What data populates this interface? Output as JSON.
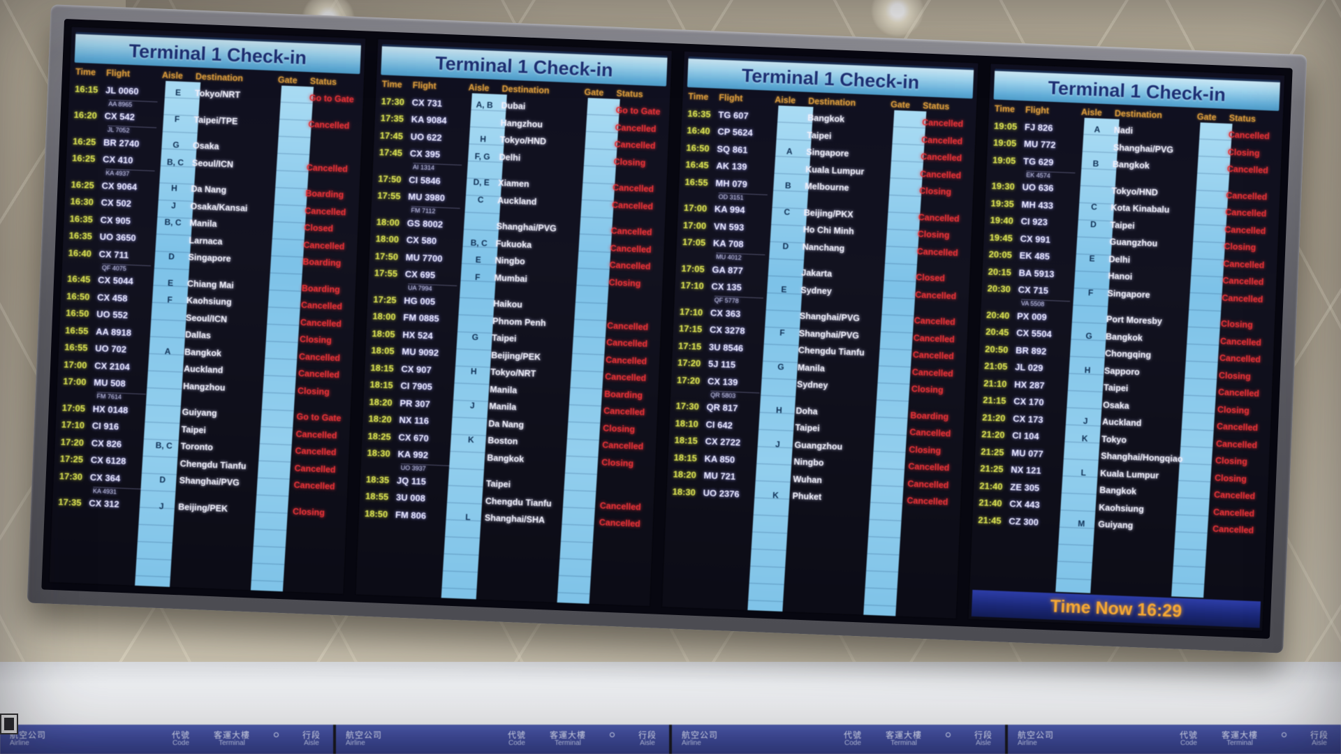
{
  "colors": {
    "header_blue": "#9fd4ee",
    "time_yellow": "#d9e052",
    "flight_white": "#e9e9ff",
    "status_red": "#e43237",
    "column_header_orange": "#d89a3c",
    "aisle_band_blue": "#7dc2e8",
    "sign_blue": "#3e4a9c",
    "time_now_orange": "#f5a733"
  },
  "board": {
    "columns": [
      "Time",
      "Flight",
      "Aisle",
      "Destination",
      "Gate",
      "Status"
    ],
    "panels": [
      {
        "title": "Terminal 1 Check-in",
        "rows": [
          {
            "t": "16:15",
            "f": "JL 0060",
            "a": "E",
            "d": "Tokyo/NRT",
            "s": "Go to Gate"
          },
          {
            "f": "AA 8965",
            "sub": true
          },
          {
            "t": "16:20",
            "f": "CX 542",
            "a": "F",
            "d": "Taipei/TPE",
            "s": "Cancelled"
          },
          {
            "f": "JL 7052",
            "sub": true
          },
          {
            "t": "16:25",
            "f": "BR 2740",
            "a": "G",
            "d": "Osaka",
            "s": ""
          },
          {
            "t": "16:25",
            "f": "CX 410",
            "a": "B, C",
            "d": "Seoul/ICN",
            "s": "Cancelled"
          },
          {
            "f": "KA 4937",
            "sub": true
          },
          {
            "t": "16:25",
            "f": "CX 9064",
            "a": "H",
            "d": "Da Nang",
            "s": "Boarding"
          },
          {
            "t": "16:30",
            "f": "CX 502",
            "a": "J",
            "d": "Osaka/Kansai",
            "s": "Cancelled"
          },
          {
            "t": "16:35",
            "f": "CX 905",
            "a": "B, C",
            "d": "Manila",
            "s": "Closed"
          },
          {
            "t": "16:35",
            "f": "UO 3650",
            "a": "",
            "d": "Larnaca",
            "s": "Cancelled"
          },
          {
            "t": "16:40",
            "f": "CX 711",
            "a": "D",
            "d": "Singapore",
            "s": "Boarding"
          },
          {
            "f": "QF 4075",
            "sub": true
          },
          {
            "t": "16:45",
            "f": "CX 5044",
            "a": "E",
            "d": "Chiang Mai",
            "s": "Boarding"
          },
          {
            "t": "16:50",
            "f": "CX 458",
            "a": "F",
            "d": "Kaohsiung",
            "s": "Cancelled"
          },
          {
            "t": "16:50",
            "f": "UO 552",
            "a": "",
            "d": "Seoul/ICN",
            "s": "Cancelled"
          },
          {
            "t": "16:55",
            "f": "AA 8918",
            "a": "",
            "d": "Dallas",
            "s": "Closing"
          },
          {
            "t": "16:55",
            "f": "UO 702",
            "a": "A",
            "d": "Bangkok",
            "s": "Cancelled"
          },
          {
            "t": "17:00",
            "f": "CX 2104",
            "a": "",
            "d": "Auckland",
            "s": "Cancelled"
          },
          {
            "t": "17:00",
            "f": "MU 508",
            "a": "",
            "d": "Hangzhou",
            "s": "Closing"
          },
          {
            "f": "FM 7614",
            "sub": true
          },
          {
            "t": "17:05",
            "f": "HX 0148",
            "a": "",
            "d": "Guiyang",
            "s": "Go to Gate"
          },
          {
            "t": "17:10",
            "f": "CI 916",
            "a": "",
            "d": "Taipei",
            "s": "Cancelled"
          },
          {
            "t": "17:20",
            "f": "CX 826",
            "a": "B, C",
            "d": "Toronto",
            "s": "Cancelled"
          },
          {
            "t": "17:25",
            "f": "CX 6128",
            "a": "",
            "d": "Chengdu Tianfu",
            "s": "Cancelled"
          },
          {
            "t": "17:30",
            "f": "CX 364",
            "a": "D",
            "d": "Shanghai/PVG",
            "s": "Cancelled"
          },
          {
            "f": "KA 4931",
            "sub": true
          },
          {
            "t": "17:35",
            "f": "CX 312",
            "a": "J",
            "d": "Beijing/PEK",
            "s": "Closing"
          }
        ]
      },
      {
        "title": "Terminal 1 Check-in",
        "rows": [
          {
            "t": "17:30",
            "f": "CX 731",
            "a": "A, B",
            "d": "Dubai",
            "s": "Go to Gate"
          },
          {
            "t": "17:35",
            "f": "KA 9084",
            "a": "",
            "d": "Hangzhou",
            "s": "Cancelled"
          },
          {
            "t": "17:45",
            "f": "UO 622",
            "a": "H",
            "d": "Tokyo/HND",
            "s": "Cancelled"
          },
          {
            "t": "17:45",
            "f": "CX 395",
            "a": "F, G",
            "d": "Delhi",
            "s": "Closing"
          },
          {
            "f": "AI 1314",
            "sub": true
          },
          {
            "t": "17:50",
            "f": "CI 5846",
            "a": "D, E",
            "d": "Xiamen",
            "s": "Cancelled"
          },
          {
            "t": "17:55",
            "f": "MU 3980",
            "a": "C",
            "d": "Auckland",
            "s": "Cancelled"
          },
          {
            "f": "FM 7112",
            "sub": true
          },
          {
            "t": "18:00",
            "f": "GS 8002",
            "a": "",
            "d": "Shanghai/PVG",
            "s": "Cancelled"
          },
          {
            "t": "18:00",
            "f": "CX 580",
            "a": "B, C",
            "d": "Fukuoka",
            "s": "Cancelled"
          },
          {
            "t": "17:50",
            "f": "MU 7700",
            "a": "E",
            "d": "Ningbo",
            "s": "Cancelled"
          },
          {
            "t": "17:55",
            "f": "CX 695",
            "a": "F",
            "d": "Mumbai",
            "s": "Closing"
          },
          {
            "f": "UA 7994",
            "sub": true
          },
          {
            "t": "17:25",
            "f": "HG 005",
            "a": "",
            "d": "Haikou",
            "s": ""
          },
          {
            "t": "18:00",
            "f": "FM 0885",
            "a": "",
            "d": "Phnom Penh",
            "s": "Cancelled"
          },
          {
            "t": "18:05",
            "f": "HX 524",
            "a": "G",
            "d": "Taipei",
            "s": "Cancelled"
          },
          {
            "t": "18:05",
            "f": "MU 9092",
            "a": "",
            "d": "Beijing/PEK",
            "s": "Cancelled"
          },
          {
            "t": "18:15",
            "f": "CX 907",
            "a": "H",
            "d": "Tokyo/NRT",
            "s": "Cancelled"
          },
          {
            "t": "18:15",
            "f": "CI 7905",
            "a": "",
            "d": "Manila",
            "s": "Boarding"
          },
          {
            "t": "18:20",
            "f": "PR 307",
            "a": "J",
            "d": "Manila",
            "s": "Cancelled"
          },
          {
            "t": "18:20",
            "f": "NX 116",
            "a": "",
            "d": "Da Nang",
            "s": "Closing"
          },
          {
            "t": "18:25",
            "f": "CX 670",
            "a": "K",
            "d": "Boston",
            "s": "Cancelled"
          },
          {
            "t": "18:30",
            "f": "KA 992",
            "a": "",
            "d": "Bangkok",
            "s": "Closing"
          },
          {
            "f": "UO 3937",
            "sub": true
          },
          {
            "t": "18:35",
            "f": "JQ 115",
            "a": "",
            "d": "Taipei",
            "s": ""
          },
          {
            "t": "18:55",
            "f": "3U 008",
            "a": "",
            "d": "Chengdu Tianfu",
            "s": "Cancelled"
          },
          {
            "t": "18:50",
            "f": "FM 806",
            "a": "L",
            "d": "Shanghai/SHA",
            "s": "Cancelled"
          }
        ]
      },
      {
        "title": "Terminal 1 Check-in",
        "rows": [
          {
            "t": "16:35",
            "f": "TG 607",
            "a": "",
            "d": "Bangkok",
            "s": "Cancelled"
          },
          {
            "t": "16:40",
            "f": "CP 5624",
            "a": "",
            "d": "Taipei",
            "s": "Cancelled"
          },
          {
            "t": "16:50",
            "f": "SQ 861",
            "a": "A",
            "d": "Singapore",
            "s": "Cancelled"
          },
          {
            "t": "16:45",
            "f": "AK 139",
            "a": "",
            "d": "Kuala Lumpur",
            "s": "Cancelled"
          },
          {
            "t": "16:55",
            "f": "MH 079",
            "a": "B",
            "d": "Melbourne",
            "s": "Closing"
          },
          {
            "f": "OD 3151",
            "sub": true
          },
          {
            "t": "17:00",
            "f": "KA 994",
            "a": "C",
            "d": "Beijing/PKX",
            "s": "Cancelled"
          },
          {
            "t": "17:00",
            "f": "VN 593",
            "a": "",
            "d": "Ho Chi Minh",
            "s": "Closing"
          },
          {
            "t": "17:05",
            "f": "KA 708",
            "a": "D",
            "d": "Nanchang",
            "s": "Cancelled"
          },
          {
            "f": "MU 4012",
            "sub": true
          },
          {
            "t": "17:05",
            "f": "GA 877",
            "a": "",
            "d": "Jakarta",
            "s": "Closed"
          },
          {
            "t": "17:10",
            "f": "CX 135",
            "a": "E",
            "d": "Sydney",
            "s": "Cancelled"
          },
          {
            "f": "QF 5778",
            "sub": true
          },
          {
            "t": "17:10",
            "f": "CX 363",
            "a": "",
            "d": "Shanghai/PVG",
            "s": "Cancelled"
          },
          {
            "t": "17:15",
            "f": "CX 3278",
            "a": "F",
            "d": "Shanghai/PVG",
            "s": "Cancelled"
          },
          {
            "t": "17:15",
            "f": "3U 8546",
            "a": "",
            "d": "Chengdu Tianfu",
            "s": "Cancelled"
          },
          {
            "t": "17:20",
            "f": "5J 115",
            "a": "G",
            "d": "Manila",
            "s": "Cancelled"
          },
          {
            "t": "17:20",
            "f": "CX 139",
            "a": "",
            "d": "Sydney",
            "s": "Closing"
          },
          {
            "f": "QR 5803",
            "sub": true
          },
          {
            "t": "17:30",
            "f": "QR 817",
            "a": "H",
            "d": "Doha",
            "s": "Boarding"
          },
          {
            "t": "18:10",
            "f": "CI 642",
            "a": "",
            "d": "Taipei",
            "s": "Cancelled"
          },
          {
            "t": "18:15",
            "f": "CX 2722",
            "a": "J",
            "d": "Guangzhou",
            "s": "Closing"
          },
          {
            "t": "18:15",
            "f": "KA 850",
            "a": "",
            "d": "Ningbo",
            "s": "Cancelled"
          },
          {
            "t": "18:20",
            "f": "MU 721",
            "a": "",
            "d": "Wuhan",
            "s": "Cancelled"
          },
          {
            "t": "18:30",
            "f": "UO 2376",
            "a": "K",
            "d": "Phuket",
            "s": "Cancelled"
          }
        ]
      },
      {
        "title": "Terminal 1 Check-in",
        "time_now": "Time Now 16:29",
        "rows": [
          {
            "t": "19:05",
            "f": "FJ 826",
            "a": "A",
            "d": "Nadi",
            "s": "Cancelled"
          },
          {
            "t": "19:05",
            "f": "MU 772",
            "a": "",
            "d": "Shanghai/PVG",
            "s": "Closing"
          },
          {
            "t": "19:05",
            "f": "TG 629",
            "a": "B",
            "d": "Bangkok",
            "s": "Cancelled"
          },
          {
            "f": "EK 4574",
            "sub": true
          },
          {
            "t": "19:30",
            "f": "UO 636",
            "a": "",
            "d": "Tokyo/HND",
            "s": "Cancelled"
          },
          {
            "t": "19:35",
            "f": "MH 433",
            "a": "C",
            "d": "Kota Kinabalu",
            "s": "Cancelled"
          },
          {
            "t": "19:40",
            "f": "CI 923",
            "a": "D",
            "d": "Taipei",
            "s": "Cancelled"
          },
          {
            "t": "19:45",
            "f": "CX 991",
            "a": "",
            "d": "Guangzhou",
            "s": "Closing"
          },
          {
            "t": "20:05",
            "f": "EK 485",
            "a": "E",
            "d": "Delhi",
            "s": "Cancelled"
          },
          {
            "t": "20:15",
            "f": "BA 5913",
            "a": "",
            "d": "Hanoi",
            "s": "Cancelled"
          },
          {
            "t": "20:30",
            "f": "CX 715",
            "a": "F",
            "d": "Singapore",
            "s": "Cancelled"
          },
          {
            "f": "VA 5508",
            "sub": true
          },
          {
            "t": "20:40",
            "f": "PX 009",
            "a": "",
            "d": "Port Moresby",
            "s": "Closing"
          },
          {
            "t": "20:45",
            "f": "CX 5504",
            "a": "G",
            "d": "Bangkok",
            "s": "Cancelled"
          },
          {
            "t": "20:50",
            "f": "BR 892",
            "a": "",
            "d": "Chongqing",
            "s": "Cancelled"
          },
          {
            "t": "21:05",
            "f": "JL 029",
            "a": "H",
            "d": "Sapporo",
            "s": "Closing"
          },
          {
            "t": "21:10",
            "f": "HX 287",
            "a": "",
            "d": "Taipei",
            "s": "Cancelled"
          },
          {
            "t": "21:15",
            "f": "CX 170",
            "a": "",
            "d": "Osaka",
            "s": "Closing"
          },
          {
            "t": "21:20",
            "f": "CX 173",
            "a": "J",
            "d": "Auckland",
            "s": "Cancelled"
          },
          {
            "t": "21:20",
            "f": "CI 104",
            "a": "K",
            "d": "Tokyo",
            "s": "Cancelled"
          },
          {
            "t": "21:25",
            "f": "MU 077",
            "a": "",
            "d": "Shanghai/Hongqiao",
            "s": "Closing"
          },
          {
            "t": "21:25",
            "f": "NX 121",
            "a": "L",
            "d": "Kuala Lumpur",
            "s": "Closing"
          },
          {
            "t": "21:40",
            "f": "ZE 305",
            "a": "",
            "d": "Bangkok",
            "s": "Cancelled"
          },
          {
            "t": "21:40",
            "f": "CX 443",
            "a": "",
            "d": "Kaohsiung",
            "s": "Cancelled"
          },
          {
            "t": "21:45",
            "f": "CZ 300",
            "a": "M",
            "d": "Guiyang",
            "s": "Cancelled"
          }
        ]
      }
    ]
  },
  "signage": {
    "units": [
      {
        "airline_zh": "航空公司",
        "airline_en": "Airline",
        "code_zh": "代號",
        "code_en": "Code",
        "terminal_zh": "客運大樓",
        "terminal_en": "Terminal",
        "aisle_zh": "行段",
        "aisle_en": "Aisle"
      },
      {
        "airline_zh": "航空公司",
        "airline_en": "Airline",
        "code_zh": "代號",
        "code_en": "Code",
        "terminal_zh": "客運大樓",
        "terminal_en": "Terminal",
        "aisle_zh": "行段",
        "aisle_en": "Aisle"
      },
      {
        "airline_zh": "航空公司",
        "airline_en": "Airline",
        "code_zh": "代號",
        "code_en": "Code",
        "terminal_zh": "客運大樓",
        "terminal_en": "Terminal",
        "aisle_zh": "行段",
        "aisle_en": "Aisle"
      },
      {
        "airline_zh": "航空公司",
        "airline_en": "Airline",
        "code_zh": "代號",
        "code_en": "Code",
        "terminal_zh": "客運大樓",
        "terminal_en": "Terminal",
        "aisle_zh": "行段",
        "aisle_en": "Aisle"
      }
    ]
  }
}
